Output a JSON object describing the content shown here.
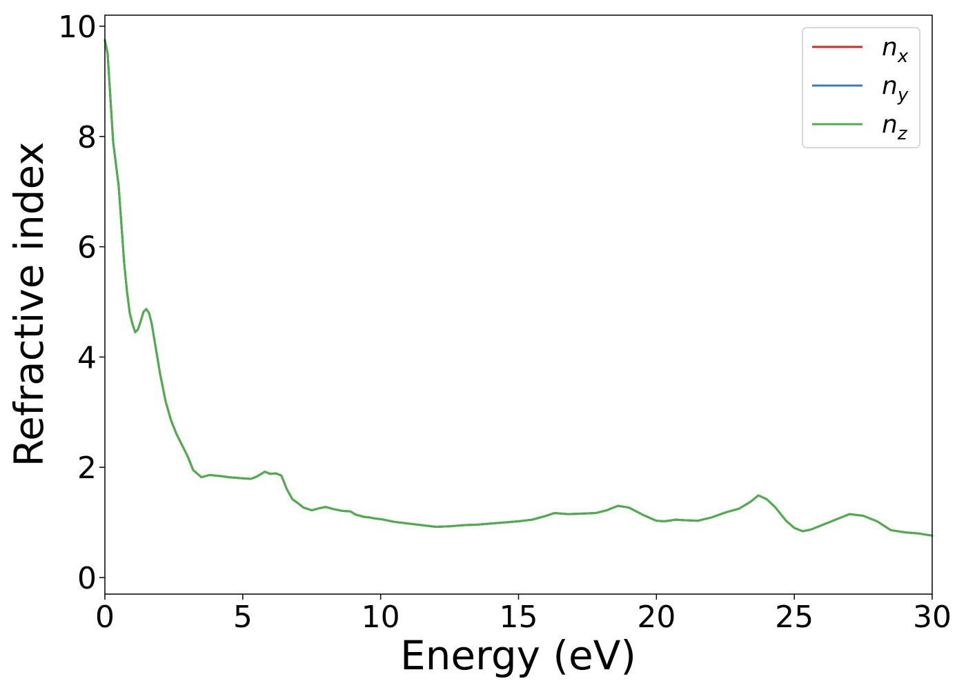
{
  "chart_data": {
    "type": "line",
    "title": "",
    "xlabel": "Energy (eV)",
    "ylabel": "Refractive index",
    "xlim": [
      0,
      30
    ],
    "ylim": [
      -0.3,
      10.2
    ],
    "xticks": [
      0,
      5,
      10,
      15,
      20,
      25,
      30
    ],
    "yticks": [
      0,
      2,
      4,
      6,
      8,
      10
    ],
    "grid": false,
    "legend_position": "top-right",
    "x": [
      0.0,
      0.1,
      0.2,
      0.3,
      0.4,
      0.5,
      0.6,
      0.7,
      0.8,
      0.9,
      1.0,
      1.1,
      1.2,
      1.3,
      1.4,
      1.5,
      1.6,
      1.7,
      1.8,
      1.9,
      2.0,
      2.2,
      2.4,
      2.6,
      2.8,
      3.0,
      3.2,
      3.5,
      3.8,
      4.0,
      4.2,
      4.5,
      5.0,
      5.3,
      5.5,
      5.8,
      6.0,
      6.2,
      6.4,
      6.6,
      6.8,
      7.0,
      7.2,
      7.5,
      7.8,
      8.0,
      8.3,
      8.6,
      8.9,
      9.1,
      9.4,
      9.6,
      9.8,
      10.0,
      10.5,
      11.0,
      11.5,
      12.0,
      12.5,
      13.0,
      13.5,
      14.0,
      14.5,
      15.0,
      15.5,
      16.0,
      16.3,
      16.8,
      17.3,
      17.8,
      18.2,
      18.6,
      19.0,
      19.5,
      20.0,
      20.3,
      20.7,
      21.0,
      21.5,
      22.0,
      22.5,
      23.0,
      23.4,
      23.7,
      24.0,
      24.3,
      24.7,
      25.0,
      25.3,
      25.6,
      26.0,
      26.5,
      27.0,
      27.5,
      28.0,
      28.5,
      29.0,
      29.5,
      30.0
    ],
    "series": [
      {
        "name": "n_x",
        "color": "#d62728",
        "values": [
          9.75,
          9.5,
          8.7,
          7.9,
          7.5,
          7.1,
          6.4,
          5.7,
          5.2,
          4.8,
          4.6,
          4.45,
          4.5,
          4.65,
          4.82,
          4.87,
          4.8,
          4.6,
          4.3,
          4.0,
          3.7,
          3.2,
          2.85,
          2.6,
          2.4,
          2.2,
          1.95,
          1.82,
          1.86,
          1.85,
          1.84,
          1.82,
          1.8,
          1.79,
          1.83,
          1.92,
          1.88,
          1.89,
          1.85,
          1.6,
          1.42,
          1.35,
          1.27,
          1.22,
          1.26,
          1.28,
          1.24,
          1.21,
          1.2,
          1.14,
          1.1,
          1.09,
          1.07,
          1.06,
          1.01,
          0.98,
          0.95,
          0.92,
          0.93,
          0.95,
          0.96,
          0.98,
          1.0,
          1.02,
          1.05,
          1.12,
          1.17,
          1.15,
          1.16,
          1.17,
          1.22,
          1.3,
          1.27,
          1.14,
          1.03,
          1.02,
          1.05,
          1.04,
          1.03,
          1.09,
          1.18,
          1.25,
          1.37,
          1.49,
          1.42,
          1.28,
          1.03,
          0.9,
          0.84,
          0.87,
          0.95,
          1.05,
          1.15,
          1.12,
          1.02,
          0.86,
          0.82,
          0.8,
          0.76
        ]
      },
      {
        "name": "n_y",
        "color": "#377eb8",
        "values": [
          9.75,
          9.5,
          8.7,
          7.9,
          7.5,
          7.1,
          6.4,
          5.7,
          5.2,
          4.8,
          4.6,
          4.45,
          4.5,
          4.65,
          4.82,
          4.87,
          4.8,
          4.6,
          4.3,
          4.0,
          3.7,
          3.2,
          2.85,
          2.6,
          2.4,
          2.2,
          1.95,
          1.82,
          1.86,
          1.85,
          1.84,
          1.82,
          1.8,
          1.79,
          1.83,
          1.92,
          1.88,
          1.89,
          1.85,
          1.6,
          1.42,
          1.35,
          1.27,
          1.22,
          1.26,
          1.28,
          1.24,
          1.21,
          1.2,
          1.14,
          1.1,
          1.09,
          1.07,
          1.06,
          1.01,
          0.98,
          0.95,
          0.92,
          0.93,
          0.95,
          0.96,
          0.98,
          1.0,
          1.02,
          1.05,
          1.12,
          1.17,
          1.15,
          1.16,
          1.17,
          1.22,
          1.3,
          1.27,
          1.14,
          1.03,
          1.02,
          1.05,
          1.04,
          1.03,
          1.09,
          1.18,
          1.25,
          1.37,
          1.49,
          1.42,
          1.28,
          1.03,
          0.9,
          0.84,
          0.87,
          0.95,
          1.05,
          1.15,
          1.12,
          1.02,
          0.86,
          0.82,
          0.8,
          0.76
        ]
      },
      {
        "name": "n_z",
        "color": "#4daf4a",
        "values": [
          9.75,
          9.5,
          8.7,
          7.9,
          7.5,
          7.1,
          6.4,
          5.7,
          5.2,
          4.8,
          4.6,
          4.45,
          4.5,
          4.65,
          4.82,
          4.87,
          4.8,
          4.6,
          4.3,
          4.0,
          3.7,
          3.2,
          2.85,
          2.6,
          2.4,
          2.2,
          1.95,
          1.82,
          1.86,
          1.85,
          1.84,
          1.82,
          1.8,
          1.79,
          1.83,
          1.92,
          1.88,
          1.89,
          1.85,
          1.6,
          1.42,
          1.35,
          1.27,
          1.22,
          1.26,
          1.28,
          1.24,
          1.21,
          1.2,
          1.14,
          1.1,
          1.09,
          1.07,
          1.06,
          1.01,
          0.98,
          0.95,
          0.92,
          0.93,
          0.95,
          0.96,
          0.98,
          1.0,
          1.02,
          1.05,
          1.12,
          1.17,
          1.15,
          1.16,
          1.17,
          1.22,
          1.3,
          1.27,
          1.14,
          1.03,
          1.02,
          1.05,
          1.04,
          1.03,
          1.09,
          1.18,
          1.25,
          1.37,
          1.49,
          1.42,
          1.28,
          1.03,
          0.9,
          0.84,
          0.87,
          0.95,
          1.05,
          1.15,
          1.12,
          1.02,
          0.86,
          0.82,
          0.8,
          0.76
        ]
      }
    ],
    "legend": [
      {
        "base": "n",
        "sub": "x",
        "color": "#d62728"
      },
      {
        "base": "n",
        "sub": "y",
        "color": "#377eb8"
      },
      {
        "base": "n",
        "sub": "z",
        "color": "#4daf4a"
      }
    ]
  }
}
